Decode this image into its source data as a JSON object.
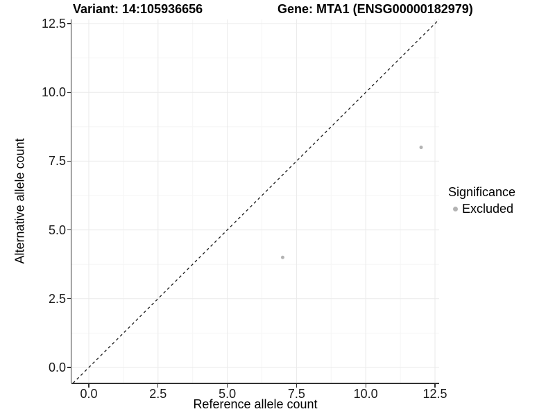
{
  "chart_data": {
    "type": "scatter",
    "title_left": "Variant: 14:105936656",
    "title_right": "Gene: MTA1 (ENSG00000182979)",
    "xlabel": "Reference allele count",
    "ylabel": "Alternative allele count",
    "xlim": [
      0,
      12.5
    ],
    "ylim": [
      0,
      12.5
    ],
    "x_ticks": {
      "values": [
        0,
        2.5,
        5,
        7.5,
        10,
        12.5
      ],
      "labels": [
        "0.0",
        "2.5",
        "5.0",
        "7.5",
        "10.0",
        "12.5"
      ]
    },
    "y_ticks": {
      "values": [
        0,
        2.5,
        5,
        7.5,
        10,
        12.5
      ],
      "labels": [
        "0.0",
        "2.5",
        "5.0",
        "7.5",
        "10.0",
        "12.5"
      ]
    },
    "minor_ticks": [
      1.25,
      3.75,
      6.25,
      8.75,
      11.25
    ],
    "grid": "major+minor",
    "identity_line": {
      "type": "dashed",
      "slope": 1,
      "intercept": 0
    },
    "series": [
      {
        "name": "Excluded",
        "color": "#b3b3b3",
        "point_radius": 2.5,
        "points": [
          {
            "x": 7,
            "y": 4
          },
          {
            "x": 12,
            "y": 8
          }
        ]
      }
    ],
    "legend": {
      "title": "Significance",
      "position": "right",
      "items": [
        {
          "label": "Excluded",
          "color": "#b3b3b3"
        }
      ]
    },
    "colors": {
      "grid_major": "#eaeaea",
      "grid_minor": "#f5f5f5",
      "axis_line": "#333333",
      "identity_line": "#1a1a1a",
      "background": "#ffffff"
    }
  }
}
